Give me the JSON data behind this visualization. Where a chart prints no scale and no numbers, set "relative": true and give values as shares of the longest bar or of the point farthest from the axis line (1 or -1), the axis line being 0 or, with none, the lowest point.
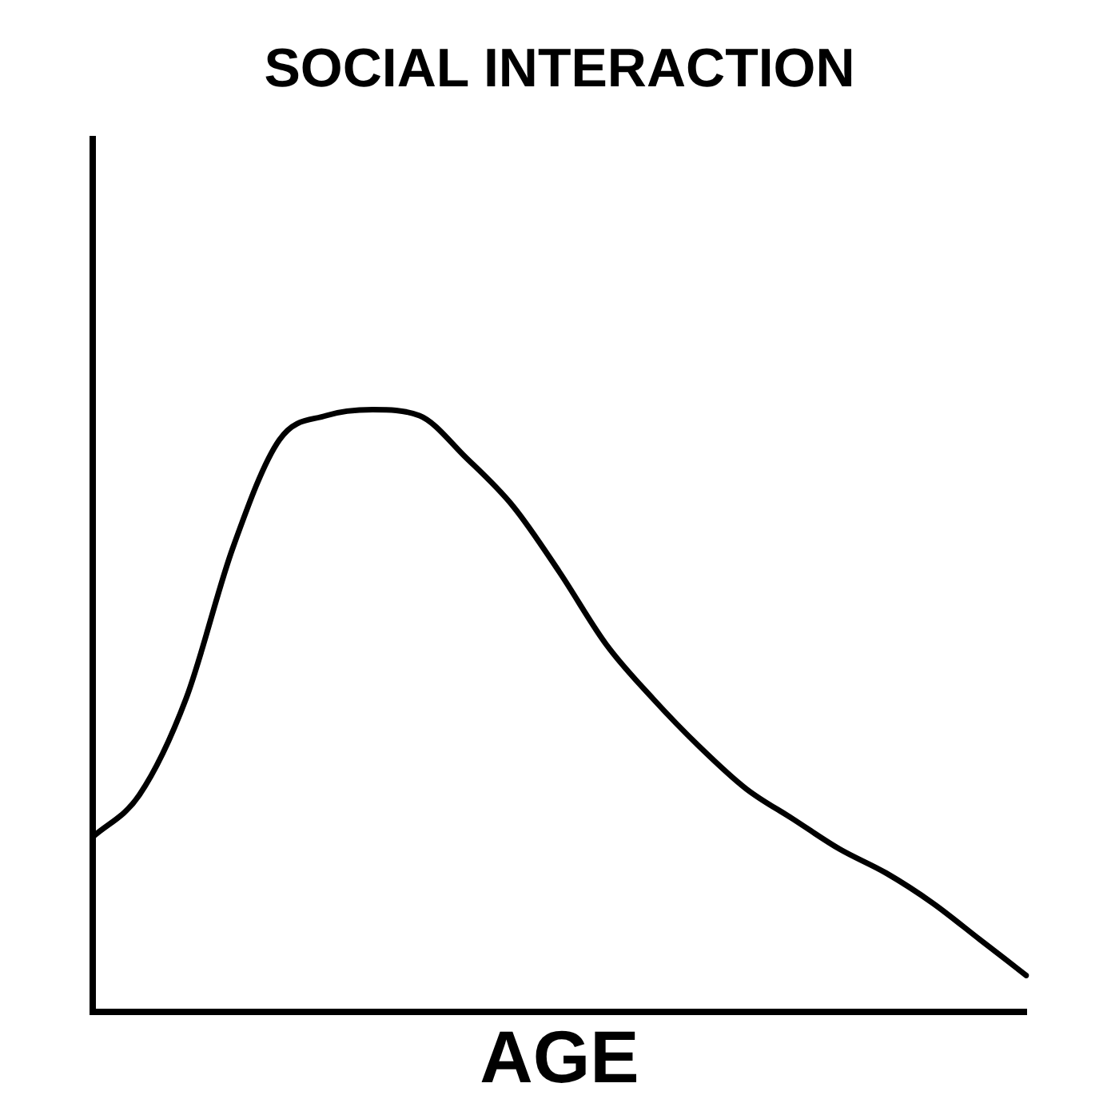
{
  "chart_data": {
    "type": "line",
    "title": "SOCIAL INTERACTION",
    "xlabel": "AGE",
    "relative": true,
    "legend": false,
    "grid": false,
    "marker": "none",
    "line_style": "solid",
    "categories": [
      null,
      null,
      null,
      null,
      null,
      null,
      null,
      null,
      null,
      null,
      null,
      null,
      null,
      null,
      null,
      null,
      null,
      null,
      null,
      null,
      null
    ],
    "series": [
      {
        "color": "#000000",
        "values": [
          0.29,
          0.36,
          0.52,
          0.77,
          0.95,
          0.99,
          1.0,
          0.99,
          0.92,
          0.84,
          0.73,
          0.61,
          0.52,
          0.44,
          0.37,
          0.32,
          0.27,
          0.23,
          0.18,
          0.12,
          0.06
        ]
      }
    ]
  }
}
